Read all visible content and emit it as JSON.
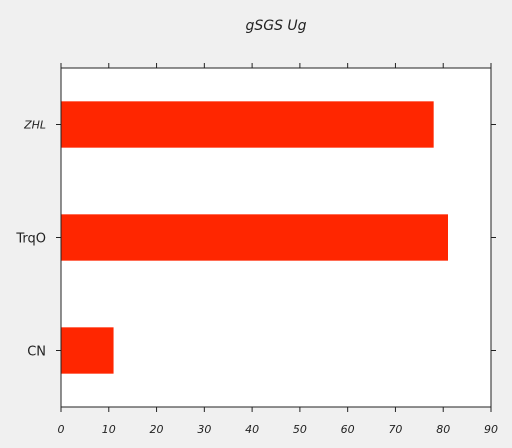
{
  "chart_data": {
    "type": "bar",
    "orientation": "horizontal",
    "title": "gSGS  Ug",
    "xlabel": "",
    "ylabel": "",
    "categories": [
      "ZHL",
      "TrqO",
      "CN"
    ],
    "category_label_style": [
      "italic-small",
      "normal",
      "normal"
    ],
    "values": [
      78,
      81,
      11
    ],
    "xlim": [
      0,
      90
    ],
    "xticks": [
      0,
      10,
      20,
      30,
      40,
      50,
      60,
      70,
      80,
      90
    ],
    "grid": false,
    "legend": "none",
    "bar_color": "#ff2600"
  },
  "colors": {
    "background": "#f0f0f0",
    "plot_background": "#ffffff",
    "axis": "#222222"
  }
}
